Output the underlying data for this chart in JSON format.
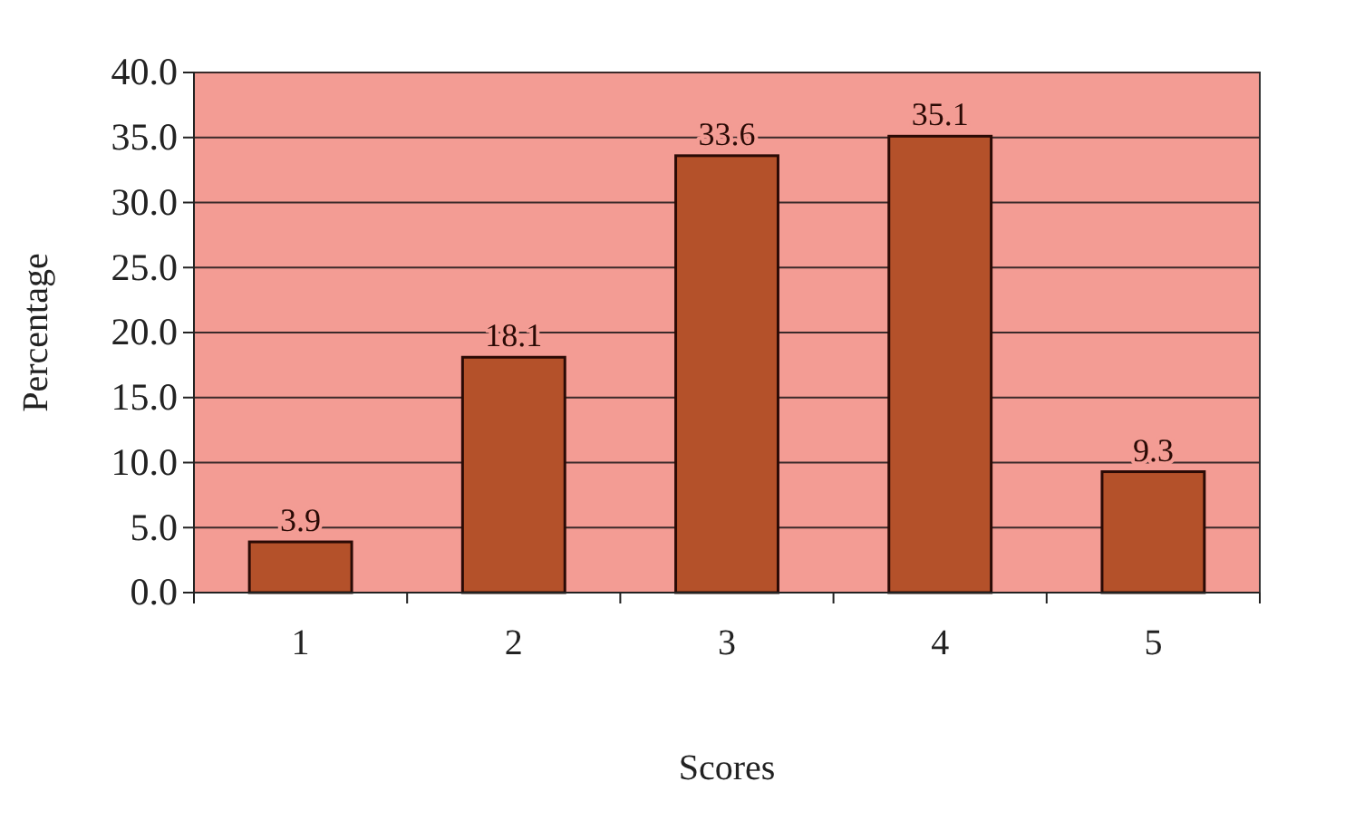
{
  "chart_data": {
    "type": "bar",
    "xlabel": "Scores",
    "ylabel": "Percentage",
    "categories": [
      "1",
      "2",
      "3",
      "4",
      "5"
    ],
    "values": [
      3.9,
      18.1,
      33.6,
      35.1,
      9.3
    ],
    "color": "#b4512a",
    "ylim": [
      0,
      40
    ],
    "yticks": [
      {
        "value": 0,
        "label": "0.0"
      },
      {
        "value": 5,
        "label": "5.0"
      },
      {
        "value": 10,
        "label": "10.0"
      },
      {
        "value": 15,
        "label": "15.0"
      },
      {
        "value": 20,
        "label": "20.0"
      },
      {
        "value": 25,
        "label": "25.0"
      },
      {
        "value": 30,
        "label": "30.0"
      },
      {
        "value": 35,
        "label": "35.0"
      },
      {
        "value": 40,
        "label": "40.0"
      }
    ],
    "grid": "y",
    "data_labels": true
  }
}
